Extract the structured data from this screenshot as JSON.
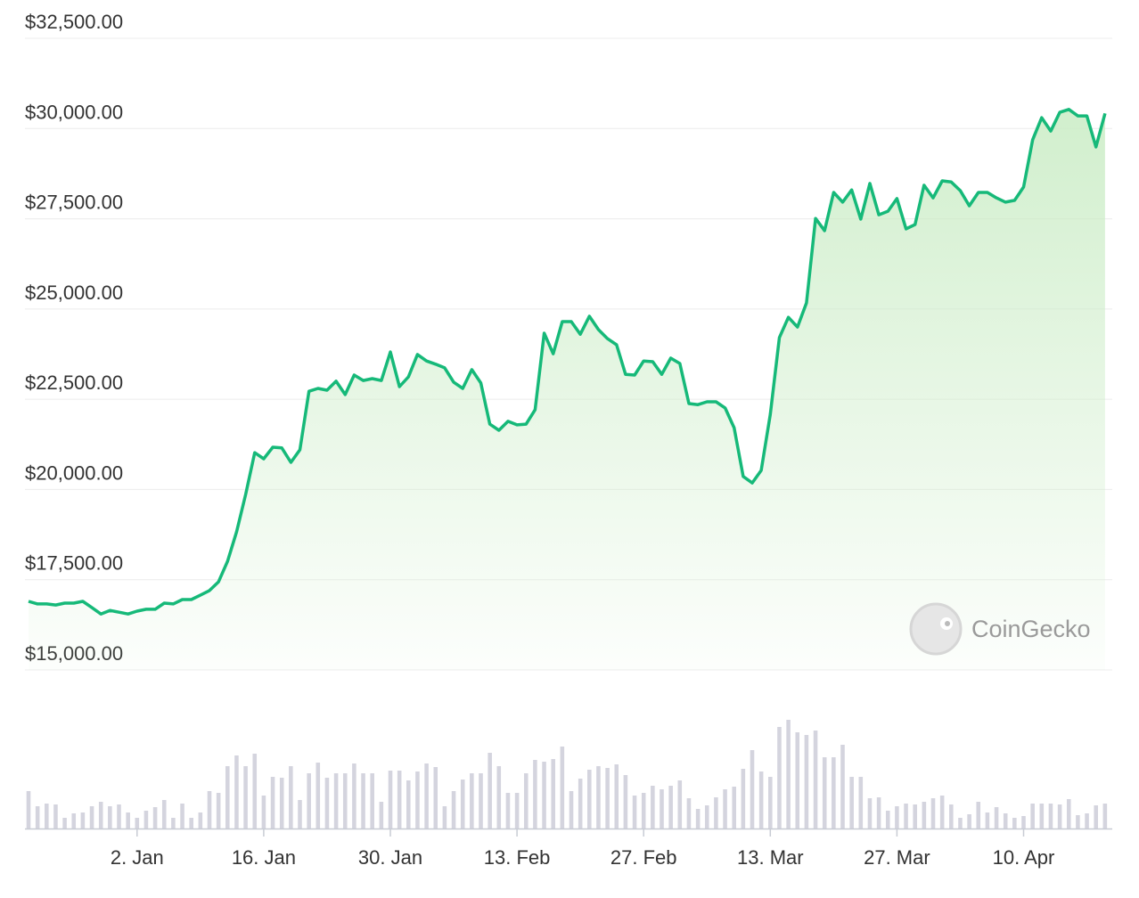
{
  "chart_data": {
    "type": "line",
    "watermark": "CoinGecko",
    "categories": [
      null,
      null,
      null,
      null,
      null,
      null,
      null,
      null,
      null,
      null,
      null,
      null,
      "2. Jan",
      null,
      null,
      null,
      null,
      null,
      null,
      null,
      null,
      null,
      null,
      null,
      null,
      null,
      "16. Jan",
      null,
      null,
      null,
      null,
      null,
      null,
      null,
      null,
      null,
      null,
      null,
      null,
      null,
      "30. Jan",
      null,
      null,
      null,
      null,
      null,
      null,
      null,
      null,
      null,
      null,
      null,
      null,
      null,
      "13. Feb",
      null,
      null,
      null,
      null,
      null,
      null,
      null,
      null,
      null,
      null,
      null,
      null,
      null,
      "27. Feb",
      null,
      null,
      null,
      null,
      null,
      null,
      null,
      null,
      null,
      null,
      null,
      null,
      null,
      "13. Mar",
      null,
      null,
      null,
      null,
      null,
      null,
      null,
      null,
      null,
      null,
      null,
      null,
      null,
      "27. Mar",
      null,
      null,
      null,
      null,
      null,
      null,
      null,
      null,
      null,
      null,
      null,
      null,
      null,
      "10. Apr",
      null,
      null,
      null,
      null,
      null,
      null,
      null,
      null,
      null
    ],
    "ylim": [
      15000,
      32500
    ],
    "yticks": [
      {
        "value": 15000,
        "label": "$15,000.00"
      },
      {
        "value": 17500,
        "label": "$17,500.00"
      },
      {
        "value": 20000,
        "label": "$20,000.00"
      },
      {
        "value": 22500,
        "label": "$22,500.00"
      },
      {
        "value": 25000,
        "label": "$25,000.00"
      },
      {
        "value": 27500,
        "label": "$27,500.00"
      },
      {
        "value": 30000,
        "label": "$30,000.00"
      },
      {
        "value": 32500,
        "label": "$32,500.00"
      }
    ],
    "grid": true,
    "y2lim": [
      0,
      130
    ],
    "series": [
      {
        "color": "#16b979",
        "values": [
          16900,
          16830,
          16830,
          16800,
          16850,
          16850,
          16900,
          16730,
          16550,
          16650,
          16600,
          16550,
          16630,
          16680,
          16680,
          16850,
          16830,
          16950,
          16950,
          17070,
          17200,
          17440,
          18010,
          18830,
          19860,
          21020,
          20850,
          21170,
          21150,
          20750,
          21100,
          22720,
          22800,
          22750,
          23000,
          22630,
          23170,
          23020,
          23070,
          23020,
          23810,
          22850,
          23120,
          23740,
          23560,
          23470,
          23370,
          22970,
          22800,
          23320,
          22950,
          21810,
          21640,
          21890,
          21790,
          21810,
          22210,
          24330,
          23760,
          24650,
          24650,
          24300,
          24800,
          24430,
          24180,
          24010,
          23190,
          23170,
          23560,
          23540,
          23190,
          23640,
          23490,
          22380,
          22350,
          22430,
          22430,
          22260,
          21710,
          20360,
          20180,
          20530,
          22080,
          24210,
          24770,
          24500,
          25170,
          27510,
          27170,
          28230,
          27960,
          28300,
          27490,
          28480,
          27610,
          27710,
          28060,
          27220,
          27340,
          28430,
          28080,
          28550,
          28520,
          28280,
          27860,
          28230,
          28230,
          28080,
          27960,
          28010,
          28380,
          29690,
          30300,
          29930,
          30450,
          30530,
          30350,
          30350,
          29490,
          30420
        ]
      },
      {
        "color": "#d4d4de",
        "type": "bar",
        "axis": "y2",
        "values": [
          42,
          25,
          28,
          27,
          12,
          17,
          18,
          25,
          30,
          25,
          27,
          18,
          12,
          20,
          24,
          32,
          12,
          28,
          12,
          18,
          42,
          40,
          70,
          82,
          70,
          84,
          37,
          58,
          57,
          70,
          32,
          62,
          74,
          57,
          62,
          62,
          73,
          62,
          62,
          30,
          65,
          65,
          54,
          64,
          73,
          69,
          25,
          42,
          55,
          62,
          62,
          85,
          70,
          40,
          40,
          62,
          77,
          75,
          78,
          92,
          42,
          56,
          66,
          70,
          68,
          72,
          60,
          37,
          40,
          48,
          44,
          48,
          54,
          34,
          22,
          26,
          35,
          44,
          47,
          67,
          88,
          64,
          58,
          114,
          122,
          108,
          105,
          110,
          80,
          80,
          94,
          58,
          58,
          34,
          35,
          20,
          25,
          28,
          27,
          30,
          34,
          37,
          27,
          12,
          16,
          30,
          18,
          24,
          17,
          12,
          14,
          28,
          28,
          28,
          27,
          33,
          15,
          17,
          26,
          28
        ]
      }
    ]
  }
}
